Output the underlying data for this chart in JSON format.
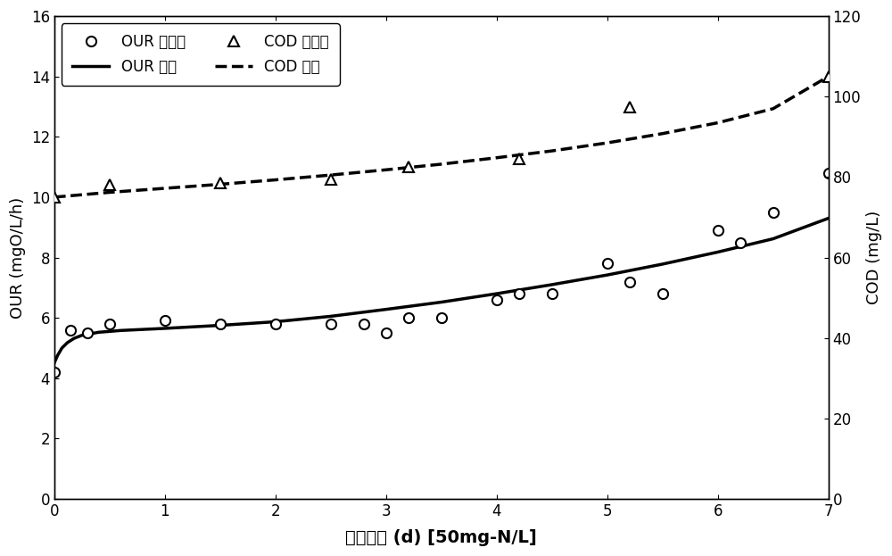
{
  "our_measured_x": [
    0.0,
    0.15,
    0.3,
    0.5,
    1.0,
    1.5,
    2.0,
    2.5,
    2.8,
    3.0,
    3.2,
    3.5,
    4.0,
    4.2,
    4.5,
    5.0,
    5.2,
    5.5,
    6.0,
    6.2,
    6.5,
    7.0
  ],
  "our_measured_y": [
    4.2,
    5.6,
    5.5,
    5.8,
    5.9,
    5.8,
    5.8,
    5.8,
    5.8,
    5.5,
    6.0,
    6.0,
    6.6,
    6.8,
    6.8,
    7.8,
    7.2,
    6.8,
    8.9,
    8.5,
    9.5,
    10.8
  ],
  "cod_measured_x": [
    0.0,
    0.5,
    1.5,
    2.5,
    3.2,
    4.2,
    5.2,
    7.0
  ],
  "cod_measured_y": [
    75.0,
    78.0,
    78.5,
    79.5,
    82.5,
    84.5,
    97.5,
    105.0
  ],
  "our_sim_x": [
    0.0,
    0.03,
    0.07,
    0.12,
    0.18,
    0.25,
    0.4,
    0.6,
    1.0,
    1.5,
    2.0,
    2.5,
    3.0,
    3.5,
    4.0,
    4.5,
    5.0,
    5.5,
    6.0,
    6.5,
    7.0
  ],
  "our_sim_y": [
    4.5,
    4.75,
    5.0,
    5.18,
    5.32,
    5.42,
    5.52,
    5.58,
    5.65,
    5.75,
    5.87,
    6.05,
    6.28,
    6.52,
    6.8,
    7.1,
    7.42,
    7.78,
    8.18,
    8.62,
    9.3
  ],
  "cod_sim_x": [
    0.0,
    0.5,
    1.0,
    1.5,
    2.0,
    2.5,
    3.0,
    3.5,
    4.0,
    4.5,
    5.0,
    5.5,
    6.0,
    6.5,
    7.0
  ],
  "cod_sim_y": [
    75.0,
    76.2,
    77.2,
    78.2,
    79.3,
    80.5,
    81.8,
    83.2,
    84.8,
    86.5,
    88.5,
    90.8,
    93.5,
    97.0,
    105.0
  ],
  "xlabel": "培养时间 (d) [50mg-N/L]",
  "ylabel_left": "OUR (mgO/L/h)",
  "ylabel_right": "COD (mg/L)",
  "xlim": [
    0,
    7
  ],
  "ylim_left": [
    0,
    16
  ],
  "ylim_right": [
    0,
    120
  ],
  "xticks": [
    0,
    1,
    2,
    3,
    4,
    5,
    6,
    7
  ],
  "yticks_left": [
    0,
    2,
    4,
    6,
    8,
    10,
    12,
    14,
    16
  ],
  "yticks_right": [
    0,
    20,
    40,
    60,
    80,
    100,
    120
  ],
  "legend_our_measured": "OUR 测定値",
  "legend_cod_measured": "COD 测定値",
  "legend_our_sim": "OUR 模拟",
  "legend_cod_sim": "COD 模拟",
  "line_color": "#000000",
  "bg_color": "#ffffff",
  "marker_size": 8,
  "line_width": 2.5
}
